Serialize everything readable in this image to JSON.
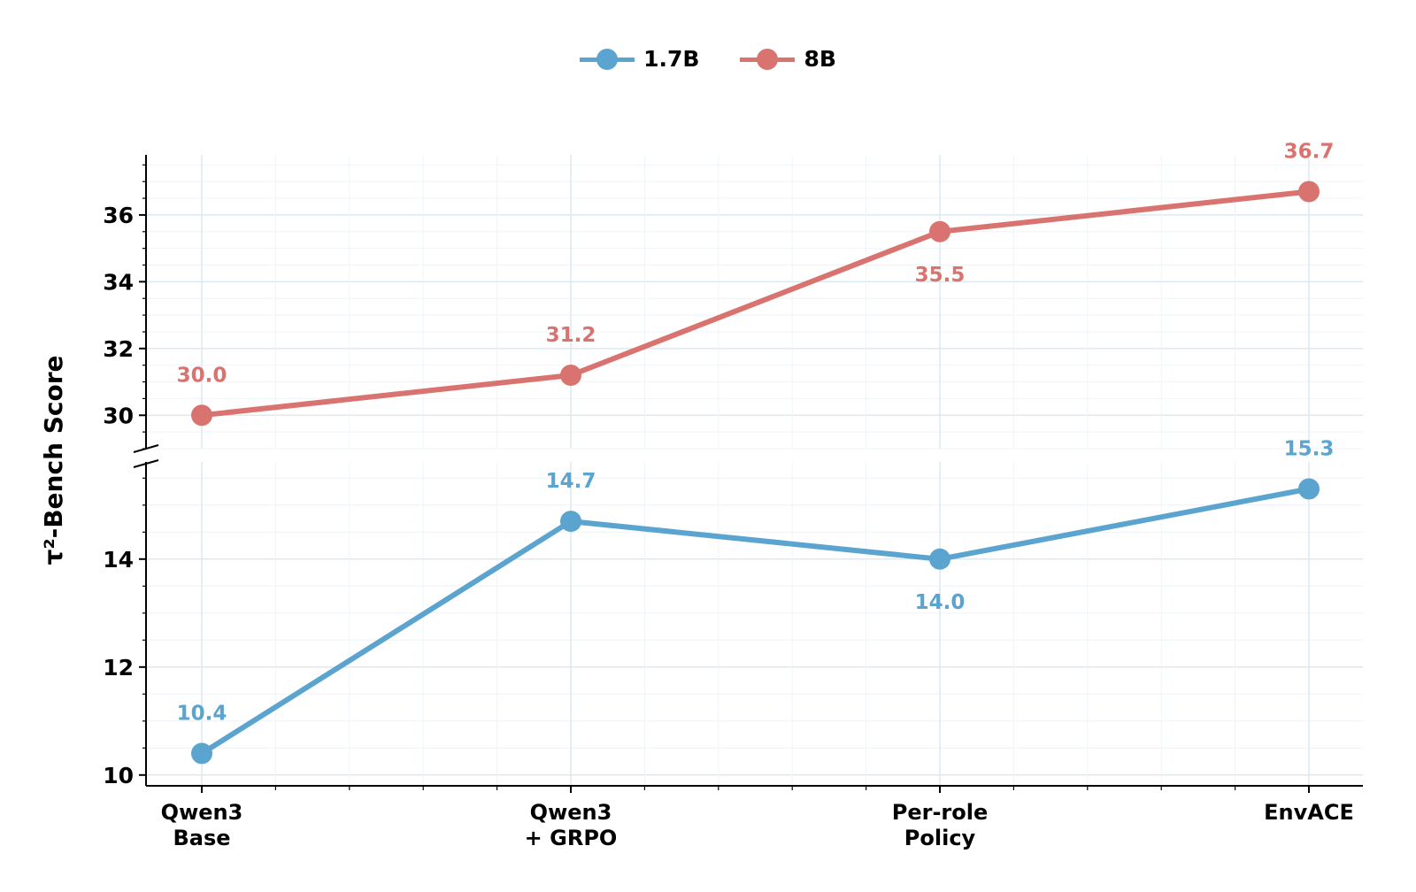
{
  "chart_data": {
    "type": "line",
    "categories": [
      [
        "Qwen3",
        "Base"
      ],
      [
        "Qwen3",
        "+ GRPO"
      ],
      [
        "Per-role",
        "Policy"
      ],
      [
        "EnvACE"
      ]
    ],
    "ylabel": "τ²-Bench Score",
    "broken_y_axis": true,
    "legend_position": "top-center",
    "grid": true,
    "series": [
      {
        "name": "1.7B",
        "color": "#5ba4cf",
        "values": [
          10.4,
          14.7,
          14.0,
          15.3
        ],
        "labels": [
          "10.4",
          "14.7",
          "14.0",
          "15.3"
        ],
        "label_side": [
          "above",
          "above",
          "below",
          "above"
        ]
      },
      {
        "name": "8B",
        "color": "#d9736f",
        "values": [
          30.0,
          31.2,
          35.5,
          36.7
        ],
        "labels": [
          "30.0",
          "31.2",
          "35.5",
          "36.7"
        ],
        "label_side": [
          "above",
          "above",
          "below",
          "above"
        ]
      }
    ],
    "upper_panel": {
      "ylim": [
        29,
        37.8
      ],
      "ticks": [
        30,
        32,
        34,
        36
      ]
    },
    "lower_panel": {
      "ylim": [
        9.8,
        15.8
      ],
      "ticks": [
        10,
        12,
        14
      ]
    }
  }
}
